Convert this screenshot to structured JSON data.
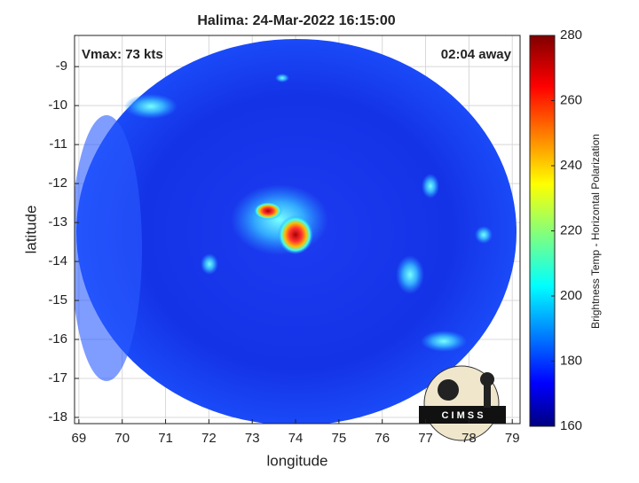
{
  "chart_data": {
    "type": "map",
    "title": "Halima: 24-Mar-2022 16:15:00",
    "xlabel": "longitude",
    "ylabel": "latitude",
    "annotations": [
      "Vmax: 73 kts",
      "02:04 away"
    ],
    "xlim": [
      68.9,
      79.18
    ],
    "ylim": [
      -18.16,
      -8.2
    ],
    "xticks": [
      69,
      70,
      71,
      72,
      73,
      74,
      75,
      76,
      77,
      78,
      79
    ],
    "yticks": [
      -9,
      -10,
      -11,
      -12,
      -13,
      -14,
      -15,
      -16,
      -17,
      -18
    ],
    "grid": true,
    "colorbar": {
      "label": "Brightness Temp - Horizontal Polarization",
      "colormap": "jet",
      "lim": [
        160,
        280
      ],
      "ticks": [
        160,
        180,
        200,
        220,
        240,
        260,
        280
      ]
    },
    "logo": "C I M S S"
  }
}
